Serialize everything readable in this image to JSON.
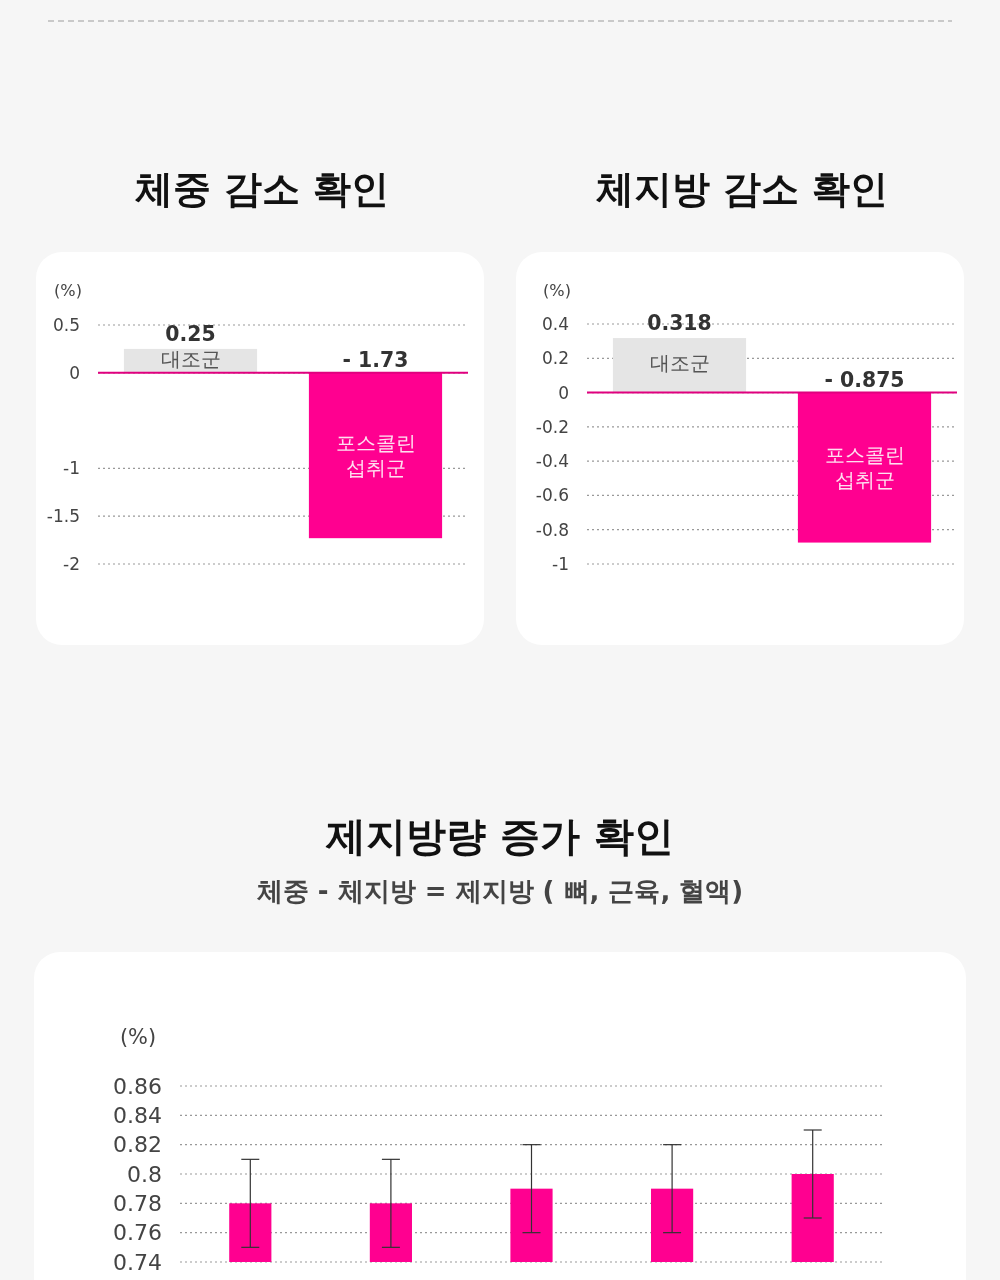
{
  "chart_data": [
    {
      "type": "bar",
      "title": "체중 감소 확인",
      "ylabel": "(%)",
      "categories": [
        "대조군",
        "포스콜린\n섭취군"
      ],
      "values": [
        0.25,
        -1.73
      ],
      "colors": [
        "#e5e5e5",
        "#ff0090"
      ],
      "value_labels": [
        "0.25",
        "- 1.73"
      ],
      "ylim": [
        -2,
        0.5
      ],
      "yticks": [
        0.5,
        0,
        -1,
        -1.5,
        -2
      ],
      "grid": "y",
      "ref_lines": [
        {
          "axis": "y",
          "value": 0,
          "color": "#e0007f"
        }
      ]
    },
    {
      "type": "bar",
      "title": "체지방 감소 확인",
      "ylabel": "(%)",
      "categories": [
        "대조군",
        "포스콜린\n섭취군"
      ],
      "values": [
        0.318,
        -0.875
      ],
      "colors": [
        "#e5e5e5",
        "#ff0090"
      ],
      "value_labels": [
        "0.318",
        "- 0.875"
      ],
      "ylim": [
        -1,
        0.4
      ],
      "yticks": [
        0.4,
        0.2,
        0,
        -0.2,
        -0.4,
        -0.6,
        -0.8,
        -1
      ],
      "grid": "y",
      "ref_lines": [
        {
          "axis": "y",
          "value": 0,
          "color": "#e0007f"
        }
      ]
    },
    {
      "type": "bar",
      "title": "제지방량 증가 확인",
      "subtitle": "체중 - 체지방 = 제지방 ( 뼈, 근육, 혈액)",
      "ylabel": "(%)",
      "categories": [
        null,
        null,
        null,
        null,
        null
      ],
      "values": [
        0.78,
        0.78,
        0.79,
        0.79,
        0.8
      ],
      "errors": [
        0.03,
        0.03,
        0.03,
        0.03,
        0.03
      ],
      "color": "#ff0090",
      "ylim": [
        0.74,
        0.86
      ],
      "yticks": [
        0.86,
        0.84,
        0.82,
        0.8,
        0.78,
        0.76,
        0.74
      ],
      "grid": "y"
    }
  ]
}
